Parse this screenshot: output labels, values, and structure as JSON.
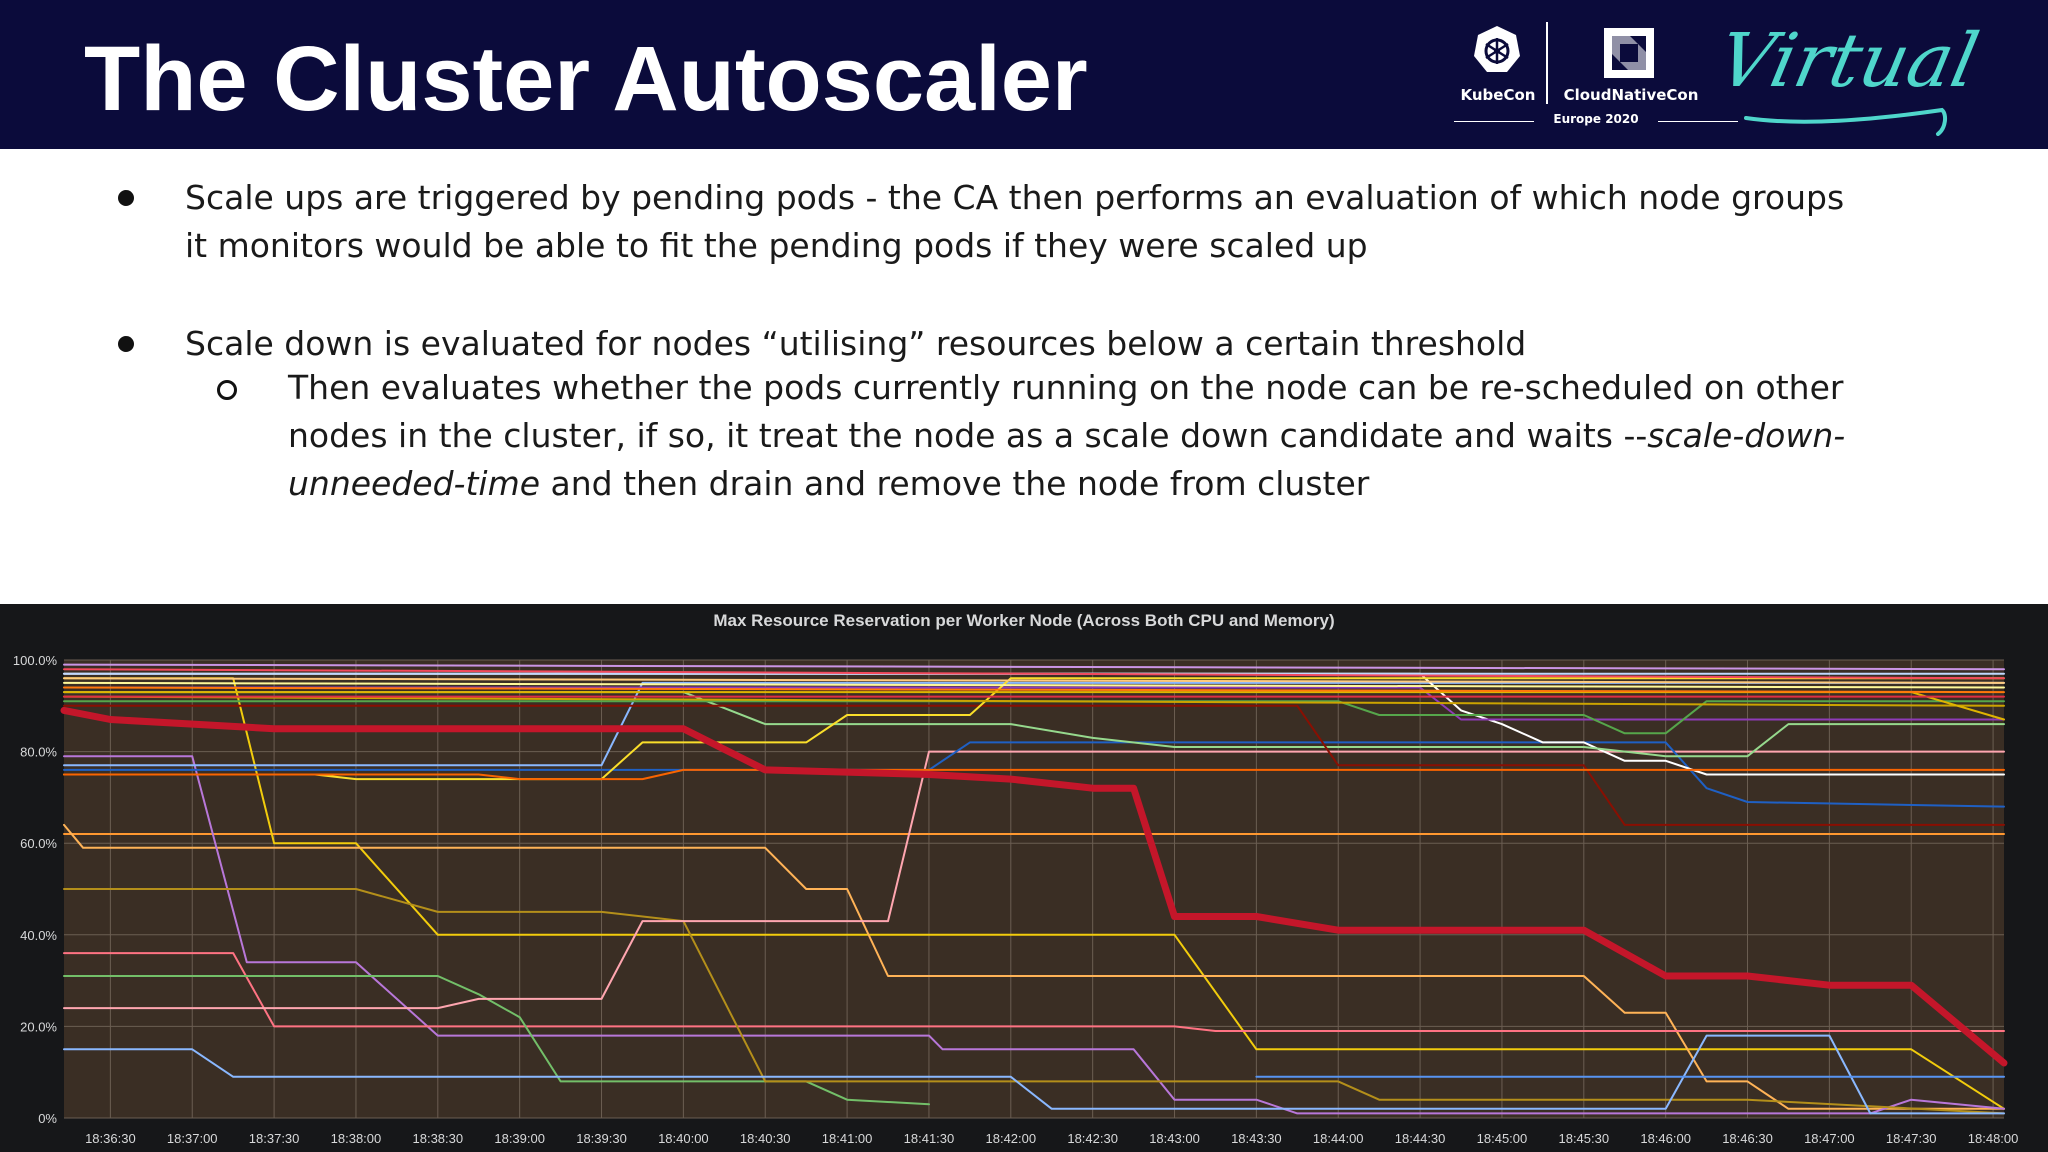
{
  "slide": {
    "title": "The Cluster Autoscaler",
    "logos": {
      "kubecon": "KubeCon",
      "cloudnativecon": "CloudNativeCon",
      "event": "Europe 2020",
      "virtual": "Virtual"
    },
    "bullets": [
      {
        "lines": [
          "Scale ups are triggered by pending pods - the CA then performs an evaluation of which node groups",
          "it monitors would be able to fit the pending pods if they were scaled up"
        ]
      },
      {
        "lines": [
          "Scale down is evaluated for nodes “utilising” resources below a certain threshold"
        ],
        "sub": {
          "line1": "Then evaluates whether the pods currently running on the node can be re-scheduled on other",
          "line2_plain": "nodes in the cluster, if so, it treat the node as a scale down candidate and waits --",
          "line2_italic": "scale-down-",
          "line3_italic": "unneeded-time",
          "line3_plain": " and then drain and remove the node from cluster"
        }
      }
    ]
  },
  "chart_data": {
    "type": "line",
    "title": "Max Resource Reservation per Worker Node (Across Both CPU and Memory)",
    "ylim": [
      0,
      100
    ],
    "yticks": [
      0,
      20,
      40,
      60,
      80,
      100
    ],
    "ytick_labels": [
      "0%",
      "20.0%",
      "40.0%",
      "60.0%",
      "80.0%",
      "100.0%"
    ],
    "x": [
      "18:36:30",
      "18:37:00",
      "18:37:30",
      "18:38:00",
      "18:38:30",
      "18:39:00",
      "18:39:30",
      "18:40:00",
      "18:40:30",
      "18:41:00",
      "18:41:30",
      "18:42:00",
      "18:42:30",
      "18:43:00",
      "18:43:30",
      "18:44:00",
      "18:44:30",
      "18:45:00",
      "18:45:30",
      "18:46:00",
      "18:46:30",
      "18:47:00",
      "18:47:30",
      "18:48:00"
    ],
    "xlim": [
      "18:36:13",
      "18:48:04"
    ],
    "grid": true,
    "background_color": "#3a2e24",
    "series": [
      {
        "color": "#c4162a",
        "bold": true,
        "points": [
          [
            "18:36:13",
            89
          ],
          [
            "18:36:30",
            87
          ],
          [
            "18:37:30",
            85
          ],
          [
            "18:40:00",
            85
          ],
          [
            "18:40:30",
            76
          ],
          [
            "18:41:30",
            75
          ],
          [
            "18:42:00",
            74
          ],
          [
            "18:42:30",
            72
          ],
          [
            "18:42:45",
            72
          ],
          [
            "18:43:00",
            44
          ],
          [
            "18:43:30",
            44
          ],
          [
            "18:44:00",
            41
          ],
          [
            "18:45:30",
            41
          ],
          [
            "18:46:00",
            31
          ],
          [
            "18:46:30",
            31
          ],
          [
            "18:47:00",
            29
          ],
          [
            "18:47:30",
            29
          ],
          [
            "18:48:04",
            12
          ]
        ]
      },
      {
        "color": "#ff9830",
        "points": [
          [
            "18:36:13",
            62
          ],
          [
            "18:48:04",
            62
          ]
        ]
      },
      {
        "color": "#f2cc0c",
        "points": [
          [
            "18:36:13",
            96
          ],
          [
            "18:37:15",
            96
          ],
          [
            "18:37:30",
            60
          ],
          [
            "18:38:00",
            60
          ],
          [
            "18:38:30",
            40
          ],
          [
            "18:43:00",
            40
          ],
          [
            "18:43:30",
            15
          ],
          [
            "18:47:30",
            15
          ],
          [
            "18:48:04",
            2
          ]
        ]
      },
      {
        "color": "#ffb357",
        "points": [
          [
            "18:36:13",
            64
          ],
          [
            "18:36:20",
            59
          ],
          [
            "18:40:30",
            59
          ],
          [
            "18:40:45",
            50
          ],
          [
            "18:41:00",
            50
          ],
          [
            "18:41:15",
            31
          ],
          [
            "18:45:30",
            31
          ],
          [
            "18:45:45",
            23
          ],
          [
            "18:46:00",
            23
          ],
          [
            "18:46:15",
            8
          ],
          [
            "18:46:30",
            8
          ],
          [
            "18:46:45",
            2
          ],
          [
            "18:48:04",
            2
          ]
        ]
      },
      {
        "color": "#b877d9",
        "points": [
          [
            "18:36:13",
            79
          ],
          [
            "18:37:00",
            79
          ],
          [
            "18:37:20",
            34
          ],
          [
            "18:38:00",
            34
          ],
          [
            "18:38:30",
            18
          ],
          [
            "18:41:30",
            18
          ],
          [
            "18:41:35",
            15
          ],
          [
            "18:42:45",
            15
          ],
          [
            "18:43:00",
            4
          ],
          [
            "18:43:30",
            4
          ],
          [
            "18:43:45",
            1
          ],
          [
            "18:47:15",
            1
          ],
          [
            "18:47:30",
            4
          ],
          [
            "18:48:04",
            2
          ]
        ]
      },
      {
        "color": "#ff7383",
        "points": [
          [
            "18:36:13",
            36
          ],
          [
            "18:37:15",
            36
          ],
          [
            "18:37:30",
            20
          ],
          [
            "18:43:00",
            20
          ],
          [
            "18:43:15",
            19
          ],
          [
            "18:48:04",
            19
          ]
        ]
      },
      {
        "color": "#73bf69",
        "points": [
          [
            "18:36:13",
            31
          ],
          [
            "18:38:30",
            31
          ],
          [
            "18:38:45",
            27
          ],
          [
            "18:39:00",
            22
          ],
          [
            "18:39:15",
            8
          ],
          [
            "18:40:45",
            8
          ],
          [
            "18:41:00",
            4
          ],
          [
            "18:41:30",
            3
          ]
        ]
      },
      {
        "color": "#b48f1a",
        "points": [
          [
            "18:36:13",
            50
          ],
          [
            "18:38:00",
            50
          ],
          [
            "18:38:30",
            45
          ],
          [
            "18:39:30",
            45
          ],
          [
            "18:40:00",
            43
          ],
          [
            "18:40:30",
            8
          ],
          [
            "18:44:00",
            8
          ],
          [
            "18:44:15",
            4
          ],
          [
            "18:46:30",
            4
          ],
          [
            "18:48:04",
            1
          ]
        ]
      },
      {
        "color": "#ffa6b0",
        "points": [
          [
            "18:36:13",
            24
          ],
          [
            "18:38:30",
            24
          ],
          [
            "18:38:45",
            26
          ],
          [
            "18:39:30",
            26
          ],
          [
            "18:39:45",
            43
          ],
          [
            "18:41:15",
            43
          ],
          [
            "18:41:30",
            80
          ],
          [
            "18:42:00",
            80
          ],
          [
            "18:48:04",
            80
          ]
        ]
      },
      {
        "color": "#8ab8ff",
        "points": [
          [
            "18:36:13",
            15
          ],
          [
            "18:37:00",
            15
          ],
          [
            "18:37:15",
            9
          ],
          [
            "18:42:00",
            9
          ],
          [
            "18:42:15",
            2
          ],
          [
            "18:46:00",
            2
          ],
          [
            "18:46:15",
            18
          ],
          [
            "18:47:00",
            18
          ],
          [
            "18:47:15",
            1
          ],
          [
            "18:48:04",
            1
          ]
        ]
      },
      {
        "color": "#5794f2",
        "points": [
          [
            "18:43:30",
            9
          ],
          [
            "18:48:04",
            9
          ]
        ]
      },
      {
        "color": "#8ab8ff",
        "points": [
          [
            "18:36:13",
            77
          ],
          [
            "18:39:30",
            77
          ],
          [
            "18:39:45",
            95
          ],
          [
            "18:48:04",
            95
          ]
        ]
      },
      {
        "color": "#1f60c4",
        "points": [
          [
            "18:36:13",
            76
          ],
          [
            "18:41:30",
            76
          ],
          [
            "18:41:45",
            82
          ],
          [
            "18:46:00",
            82
          ],
          [
            "18:46:15",
            72
          ],
          [
            "18:46:30",
            69
          ],
          [
            "18:48:04",
            68
          ]
        ]
      },
      {
        "color": "#ffffff",
        "points": [
          [
            "18:36:13",
            97
          ],
          [
            "18:44:30",
            97
          ],
          [
            "18:44:45",
            89
          ],
          [
            "18:45:00",
            86
          ],
          [
            "18:45:15",
            82
          ],
          [
            "18:45:30",
            82
          ],
          [
            "18:45:45",
            78
          ],
          [
            "18:46:00",
            78
          ],
          [
            "18:46:15",
            75
          ],
          [
            "18:48:04",
            75
          ]
        ]
      },
      {
        "color": "#8f3bb8",
        "points": [
          [
            "18:36:13",
            94
          ],
          [
            "18:44:30",
            94
          ],
          [
            "18:44:45",
            87
          ],
          [
            "18:48:04",
            87
          ]
        ]
      },
      {
        "color": "#96d98d",
        "points": [
          [
            "18:36:13",
            93
          ],
          [
            "18:40:00",
            93
          ],
          [
            "18:40:30",
            86
          ],
          [
            "18:42:00",
            86
          ],
          [
            "18:42:30",
            83
          ],
          [
            "18:43:00",
            81
          ],
          [
            "18:45:30",
            81
          ],
          [
            "18:46:00",
            79
          ],
          [
            "18:46:30",
            79
          ],
          [
            "18:46:45",
            86
          ],
          [
            "18:48:04",
            86
          ]
        ]
      },
      {
        "color": "#56a64b",
        "points": [
          [
            "18:36:13",
            91
          ],
          [
            "18:44:00",
            91
          ],
          [
            "18:44:15",
            88
          ],
          [
            "18:45:30",
            88
          ],
          [
            "18:45:45",
            84
          ],
          [
            "18:46:00",
            84
          ],
          [
            "18:46:15",
            91
          ],
          [
            "18:48:04",
            91
          ]
        ]
      },
      {
        "color": "#890f02",
        "points": [
          [
            "18:36:13",
            90
          ],
          [
            "18:43:45",
            90
          ],
          [
            "18:44:00",
            77
          ],
          [
            "18:45:30",
            77
          ],
          [
            "18:45:45",
            64
          ],
          [
            "18:48:04",
            64
          ]
        ]
      },
      {
        "color": "#fade2a",
        "points": [
          [
            "18:36:13",
            75
          ],
          [
            "18:37:45",
            75
          ],
          [
            "18:38:00",
            74
          ],
          [
            "18:39:30",
            74
          ],
          [
            "18:39:45",
            82
          ],
          [
            "18:40:45",
            82
          ],
          [
            "18:41:00",
            88
          ],
          [
            "18:41:45",
            88
          ],
          [
            "18:42:00",
            96
          ],
          [
            "18:48:04",
            96
          ]
        ]
      },
      {
        "color": "#fa6400",
        "points": [
          [
            "18:36:13",
            75
          ],
          [
            "18:38:45",
            75
          ],
          [
            "18:39:00",
            74
          ],
          [
            "18:39:45",
            74
          ],
          [
            "18:40:00",
            76
          ],
          [
            "18:48:04",
            76
          ]
        ]
      },
      {
        "color": "#cca300",
        "points": [
          [
            "18:36:13",
            92
          ],
          [
            "18:48:04",
            90
          ]
        ]
      },
      {
        "color": "#e0b400",
        "points": [
          [
            "18:36:13",
            93
          ],
          [
            "18:47:30",
            93
          ],
          [
            "18:48:04",
            87
          ]
        ]
      },
      {
        "color": "#fff899",
        "points": [
          [
            "18:36:13",
            95
          ],
          [
            "18:48:04",
            94
          ]
        ]
      },
      {
        "color": "#ffcb7d",
        "points": [
          [
            "18:36:13",
            96
          ],
          [
            "18:48:04",
            95
          ]
        ]
      },
      {
        "color": "#e02f44",
        "points": [
          [
            "18:36:13",
            92
          ],
          [
            "18:48:04",
            92
          ]
        ]
      },
      {
        "color": "#ca95e5",
        "points": [
          [
            "18:36:13",
            99
          ],
          [
            "18:48:04",
            98
          ]
        ]
      },
      {
        "color": "#c0d8ff",
        "points": [
          [
            "18:36:13",
            97
          ],
          [
            "18:48:04",
            97
          ]
        ]
      },
      {
        "color": "#f2495c",
        "points": [
          [
            "18:36:13",
            98
          ],
          [
            "18:48:04",
            96
          ]
        ]
      },
      {
        "color": "#ff780a",
        "points": [
          [
            "18:36:13",
            94
          ],
          [
            "18:48:04",
            93
          ]
        ]
      }
    ]
  }
}
